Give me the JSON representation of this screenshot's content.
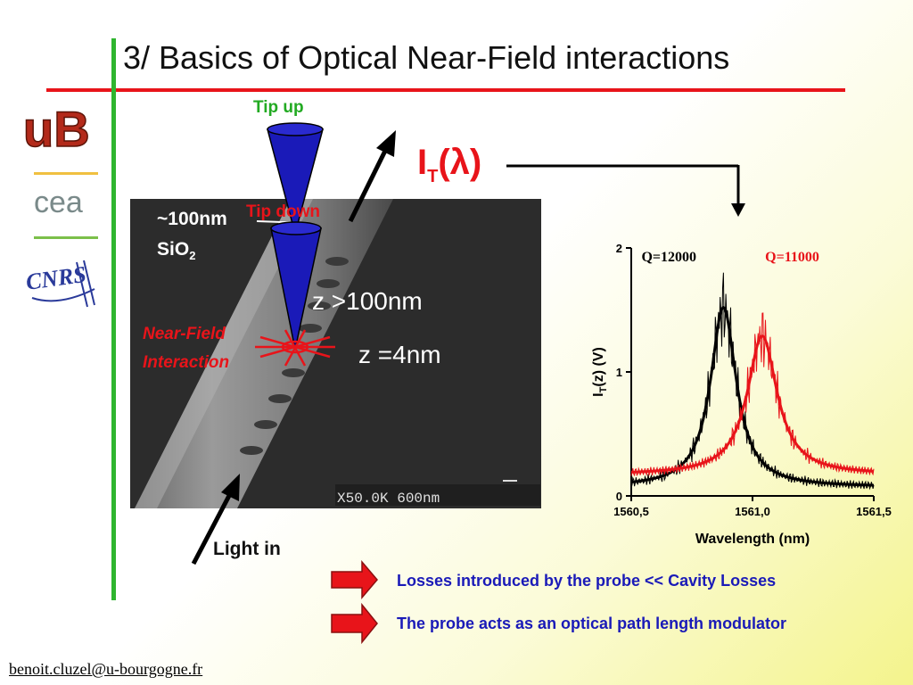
{
  "title": "3/ Basics of Optical Near-Field interactions",
  "logos": {
    "ub_text": "uB",
    "cea_text": "cea",
    "cnrs_text": "CNRS"
  },
  "sem": {
    "thickness_label": "~100nm",
    "material_label": "SiO",
    "material_sub": "2",
    "z_far": "z >100nm",
    "z_near": "z =4nm",
    "scale_text": "X50.0K  600nm"
  },
  "probe": {
    "tip_up": "Tip up",
    "tip_down": "Tip down",
    "near_field_1": "Near-Field",
    "near_field_2": "Interaction"
  },
  "transmission_label": {
    "main": "I",
    "sub": "T",
    "arg": "(λ)"
  },
  "light_in": "Light in",
  "bullets": [
    {
      "text": "Losses introduced by the probe << Cavity Losses"
    },
    {
      "text": "The probe acts as an optical path length modulator"
    }
  ],
  "footer_email": "benoit.cluzel@u-bourgogne.fr",
  "colors": {
    "accent_red": "#e8141a",
    "accent_green": "#2fb52f",
    "bullet_blue": "#1a1ab8",
    "probe_blue": "#1a1ab8"
  },
  "chart_data": {
    "type": "line",
    "xlabel": "Wavelength (nm)",
    "ylabel_main": "I",
    "ylabel_sub": "T",
    "ylabel_rest": "(z)  (V)",
    "xlim": [
      1560.5,
      1561.5
    ],
    "ylim": [
      0,
      2
    ],
    "xticks": [
      1560.5,
      1561.0,
      1561.5
    ],
    "xtick_labels": [
      "1560,5",
      "1561,0",
      "1561,5"
    ],
    "yticks": [
      0,
      1,
      2
    ],
    "ytick_labels": [
      "0",
      "1",
      "2"
    ],
    "annotations": [
      {
        "text": "Q=12000",
        "color": "#000000",
        "x": 1560.52
      },
      {
        "text": "Q=11000",
        "color": "#e8141a",
        "x": 1561.03
      }
    ],
    "series": [
      {
        "color": "#000000",
        "fit": {
          "center": 1560.88,
          "amp": 1.45,
          "width": 0.065,
          "base": 0.07
        }
      },
      {
        "color": "#e8141a",
        "fit": {
          "center": 1561.04,
          "amp": 1.12,
          "width": 0.075,
          "base": 0.17
        }
      }
    ]
  }
}
